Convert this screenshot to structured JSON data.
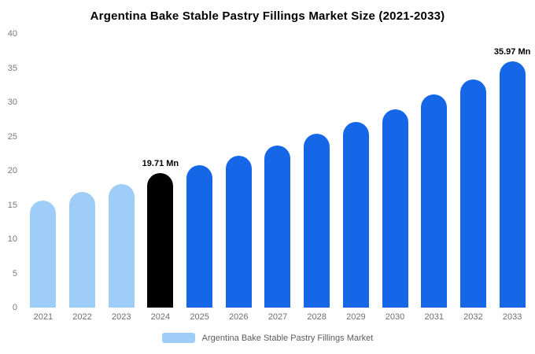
{
  "title": "Argentina Bake Stable Pastry Fillings Market Size (2021-2033)",
  "colors": {
    "light_blue": "#9ECDF8",
    "blue": "#1567E8",
    "black": "#000000",
    "axis_text": "#7a7a7a"
  },
  "chart_data": {
    "type": "bar",
    "title": "Argentina Bake Stable Pastry Fillings Market Size (2021-2033)",
    "categories": [
      "2021",
      "2022",
      "2023",
      "2024",
      "2025",
      "2026",
      "2027",
      "2028",
      "2029",
      "2030",
      "2031",
      "2032",
      "2033"
    ],
    "values": [
      15.6,
      16.9,
      18.1,
      19.71,
      20.8,
      22.2,
      23.7,
      25.4,
      27.1,
      29.0,
      31.1,
      33.3,
      35.97
    ],
    "bar_colors": [
      "light_blue",
      "light_blue",
      "light_blue",
      "black",
      "blue",
      "blue",
      "blue",
      "blue",
      "blue",
      "blue",
      "blue",
      "blue",
      "blue"
    ],
    "point_labels": [
      {
        "index": 3,
        "label": "19.71 Mn"
      },
      {
        "index": 12,
        "label": "35.97 Mn"
      }
    ],
    "xlabel": "",
    "ylabel": "",
    "ylim": [
      0,
      40
    ],
    "yticks": [
      0,
      5,
      10,
      15,
      20,
      25,
      30,
      35,
      40
    ],
    "grid": false,
    "legend": {
      "position": "bottom",
      "label": "Argentina Bake Stable Pastry Fillings Market",
      "swatch_color": "#9ECDF8"
    }
  }
}
